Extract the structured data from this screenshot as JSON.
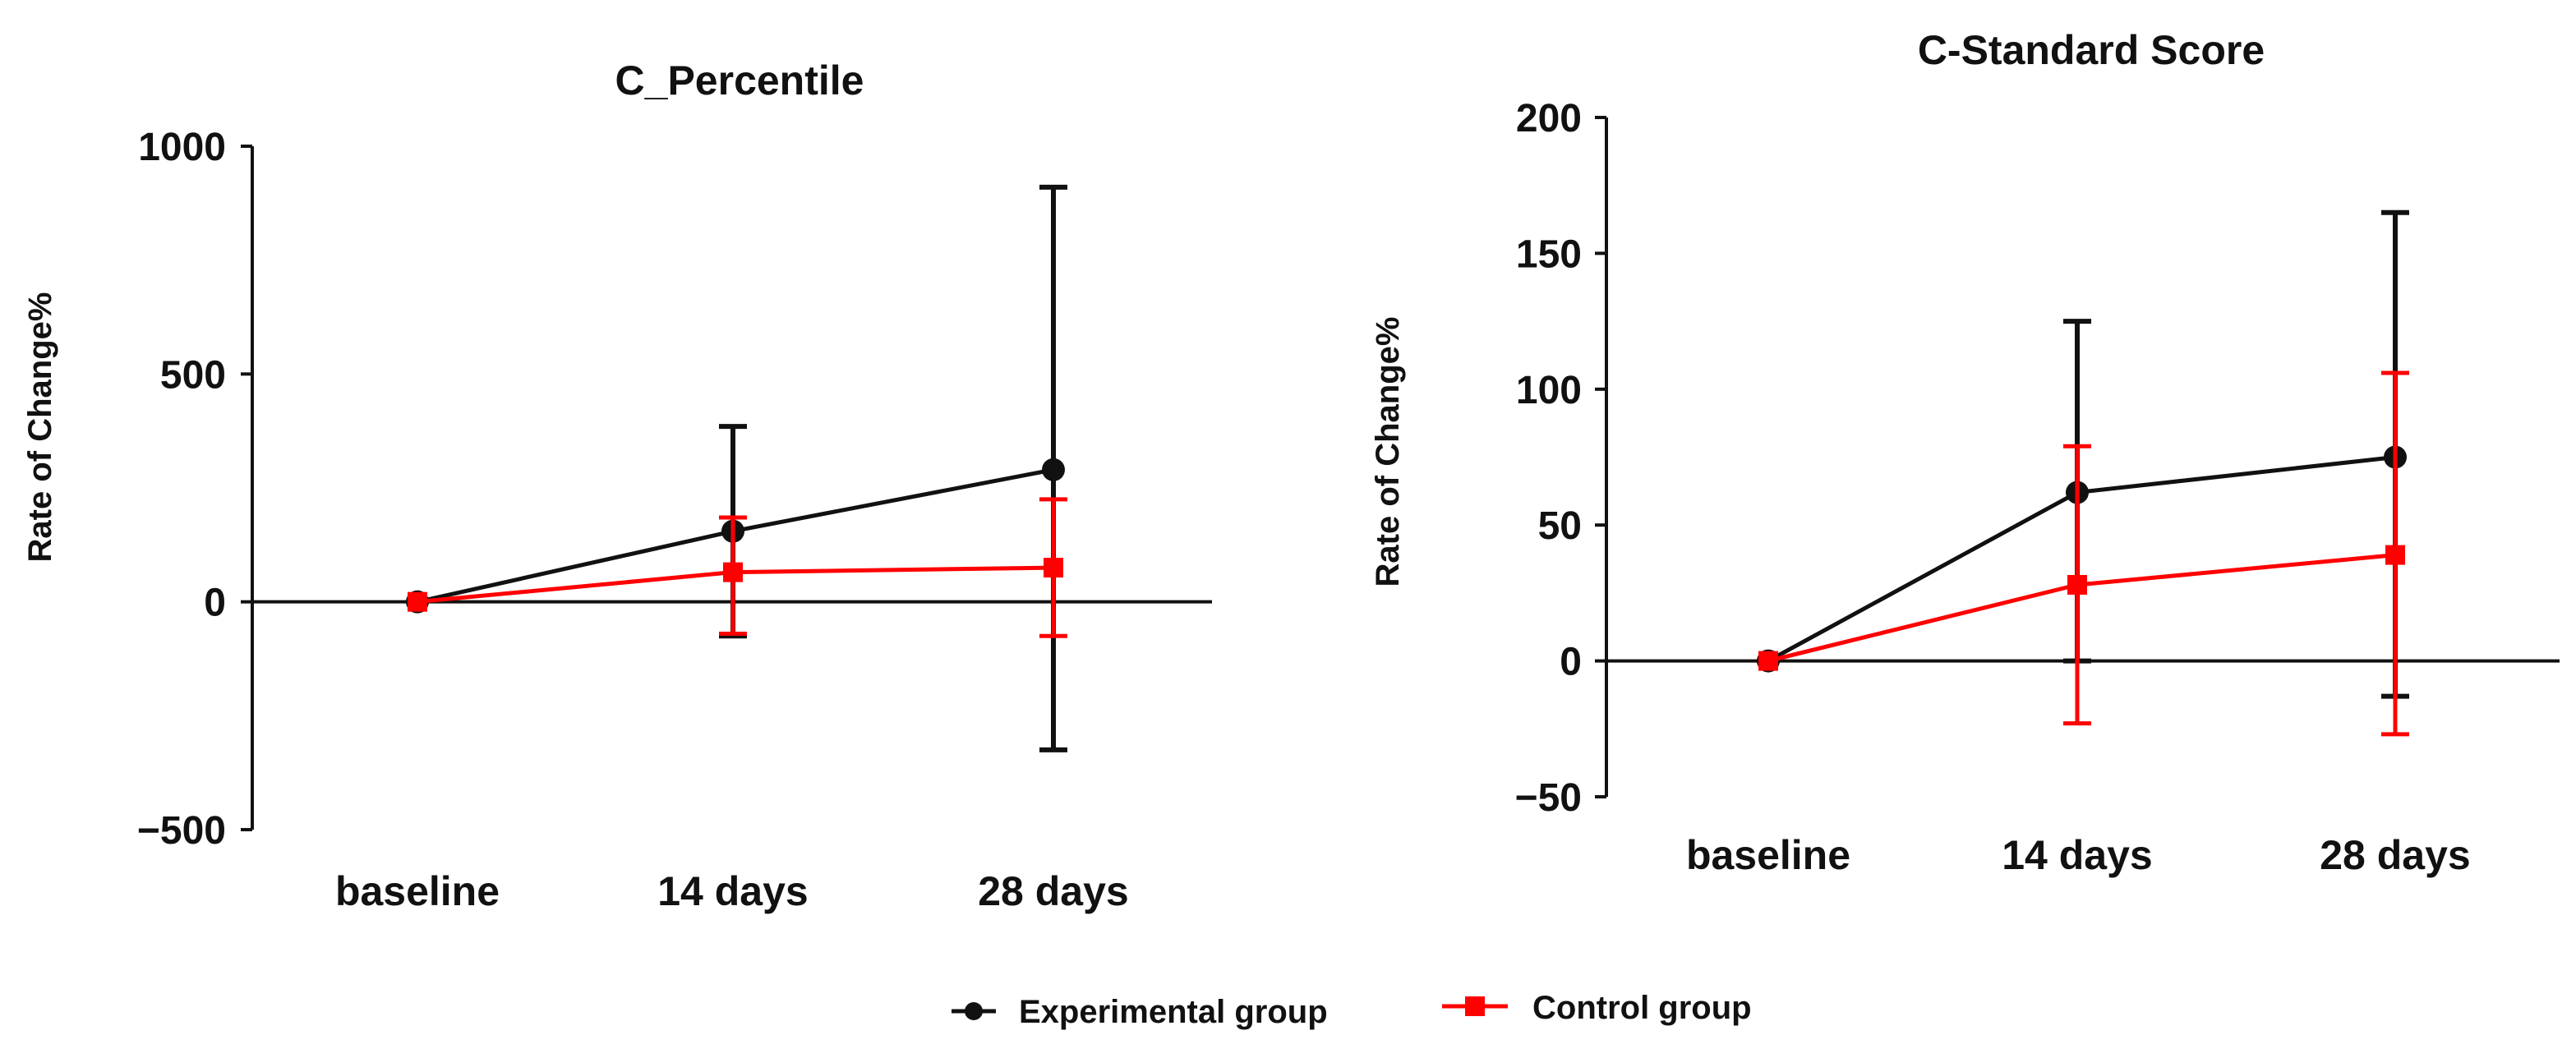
{
  "colors": {
    "experimental": "#111111",
    "control": "#ff0000"
  },
  "legend": {
    "placement": "bottom-center",
    "experimental_label": "Experimental group",
    "control_label": "Control group"
  },
  "chart_data": [
    {
      "type": "line",
      "title": "C_Percentile",
      "xlabel": "",
      "ylabel": "Rate of Change%",
      "categories": [
        "baseline",
        "14 days",
        "28 days"
      ],
      "ylim": [
        -500,
        1000
      ],
      "yticks": [
        -500,
        0,
        500,
        1000
      ],
      "ytick_labels": [
        "−500",
        "0",
        "500",
        "1000"
      ],
      "grid": false,
      "series": [
        {
          "name": "Experimental group",
          "values": [
            0,
            155,
            290
          ],
          "err_upper": [
            0,
            385,
            910
          ],
          "err_lower": [
            0,
            -75,
            -325
          ]
        },
        {
          "name": "Control group",
          "values": [
            0,
            65,
            75
          ],
          "err_upper": [
            0,
            185,
            225
          ],
          "err_lower": [
            0,
            -70,
            -75
          ]
        }
      ]
    },
    {
      "type": "line",
      "title": "C-Standard Score",
      "xlabel": "",
      "ylabel": "Rate of Change%",
      "categories": [
        "baseline",
        "14 days",
        "28 days"
      ],
      "ylim": [
        -50,
        200
      ],
      "yticks": [
        -50,
        0,
        50,
        100,
        150,
        200
      ],
      "ytick_labels": [
        "−50",
        "0",
        "50",
        "100",
        "150",
        "200"
      ],
      "grid": false,
      "series": [
        {
          "name": "Experimental group",
          "values": [
            0,
            62,
            75
          ],
          "err_upper": [
            0,
            125,
            165
          ],
          "err_lower": [
            0,
            0,
            -13
          ]
        },
        {
          "name": "Control group",
          "values": [
            0,
            28,
            39
          ],
          "err_upper": [
            0,
            79,
            106
          ],
          "err_lower": [
            0,
            -23,
            -27
          ]
        }
      ]
    }
  ]
}
